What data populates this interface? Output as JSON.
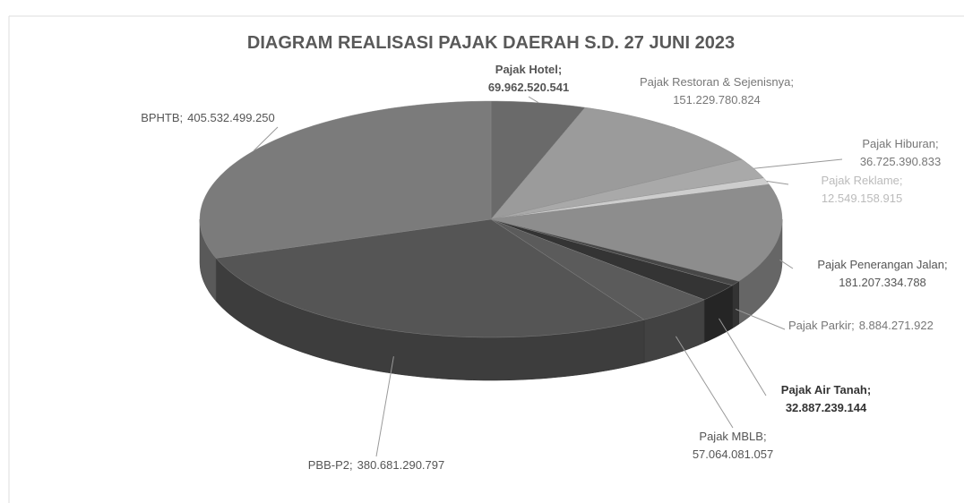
{
  "chart_data": {
    "type": "pie",
    "title": "DIAGRAM REALISASI PAJAK DAERAH S.D. 27 JUNI 2023",
    "label_separator": ";",
    "categories": [
      "Pajak Hotel",
      "Pajak Restoran & Sejenisnya",
      "Pajak Hiburan",
      "Pajak Reklame",
      "Pajak Penerangan Jalan",
      "Pajak Parkir",
      "Pajak Air Tanah",
      "Pajak MBLB",
      "PBB-P2",
      "BPHTB"
    ],
    "values": [
      69962520541,
      151229780824,
      36725390833,
      12549158915,
      181207334788,
      8884271922,
      32887239144,
      57064081057,
      380681290797,
      405532499250
    ],
    "value_labels": [
      "69.962.520.541",
      "151.229.780.824",
      "36.725.390.833",
      "12.549.158.915",
      "181.207.334.788",
      "8.884.271.922",
      "32.887.239.144",
      "57.064.081.057",
      "380.681.290.797",
      "405.532.499.250"
    ],
    "colors": [
      "#6a6a6a",
      "#9b9b9b",
      "#a9a9a9",
      "#cdcdcd",
      "#8d8d8d",
      "#474747",
      "#343434",
      "#5b5b5b",
      "#555555",
      "#7b7b7b"
    ]
  }
}
